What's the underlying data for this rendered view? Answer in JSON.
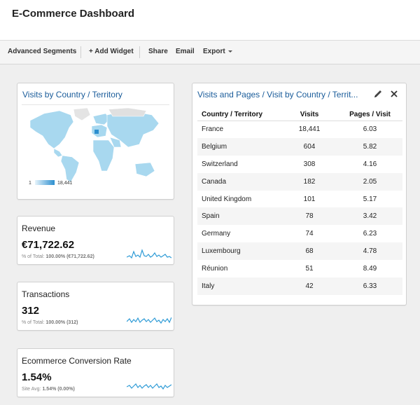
{
  "header": {
    "title": "E-Commerce Dashboard"
  },
  "toolbar": {
    "advanced_segments": "Advanced Segments",
    "add_widget": "+ Add Widget",
    "share": "Share",
    "email": "Email",
    "export": "Export"
  },
  "map_widget": {
    "title": "Visits by Country / Territory",
    "legend_min": "1",
    "legend_max": "18,441"
  },
  "metrics": [
    {
      "title": "Revenue",
      "value": "€71,722.62",
      "sub_label": "% of Total:",
      "sub_value": "100.00% (€71,722.62)"
    },
    {
      "title": "Transactions",
      "value": "312",
      "sub_label": "% of Total:",
      "sub_value": "100.00% (312)"
    },
    {
      "title": "Ecommerce Conversion Rate",
      "value": "1.54%",
      "sub_label": "Site Avg:",
      "sub_value": "1.54% (0.00%)"
    }
  ],
  "table_widget": {
    "title": "Visits and Pages / Visit by Country / Territ...",
    "columns": [
      "Country / Territory",
      "Visits",
      "Pages / Visit"
    ],
    "rows": [
      {
        "country": "France",
        "visits": "18,441",
        "pages": "6.03"
      },
      {
        "country": "Belgium",
        "visits": "604",
        "pages": "5.82"
      },
      {
        "country": "Switzerland",
        "visits": "308",
        "pages": "4.16"
      },
      {
        "country": "Canada",
        "visits": "182",
        "pages": "2.05"
      },
      {
        "country": "United Kingdom",
        "visits": "101",
        "pages": "5.17"
      },
      {
        "country": "Spain",
        "visits": "78",
        "pages": "3.42"
      },
      {
        "country": "Germany",
        "visits": "74",
        "pages": "6.23"
      },
      {
        "country": "Luxembourg",
        "visits": "68",
        "pages": "4.78"
      },
      {
        "country": "Réunion",
        "visits": "51",
        "pages": "8.49"
      },
      {
        "country": "Italy",
        "visits": "42",
        "pages": "6.33"
      }
    ]
  },
  "icons": {
    "edit": "pencil-icon",
    "close": "close-icon"
  },
  "colors": {
    "link": "#1a5c9a",
    "map_fill": "#a8d8ef",
    "map_dark": "#2d8fcf",
    "spark": "#2e9bd6"
  }
}
